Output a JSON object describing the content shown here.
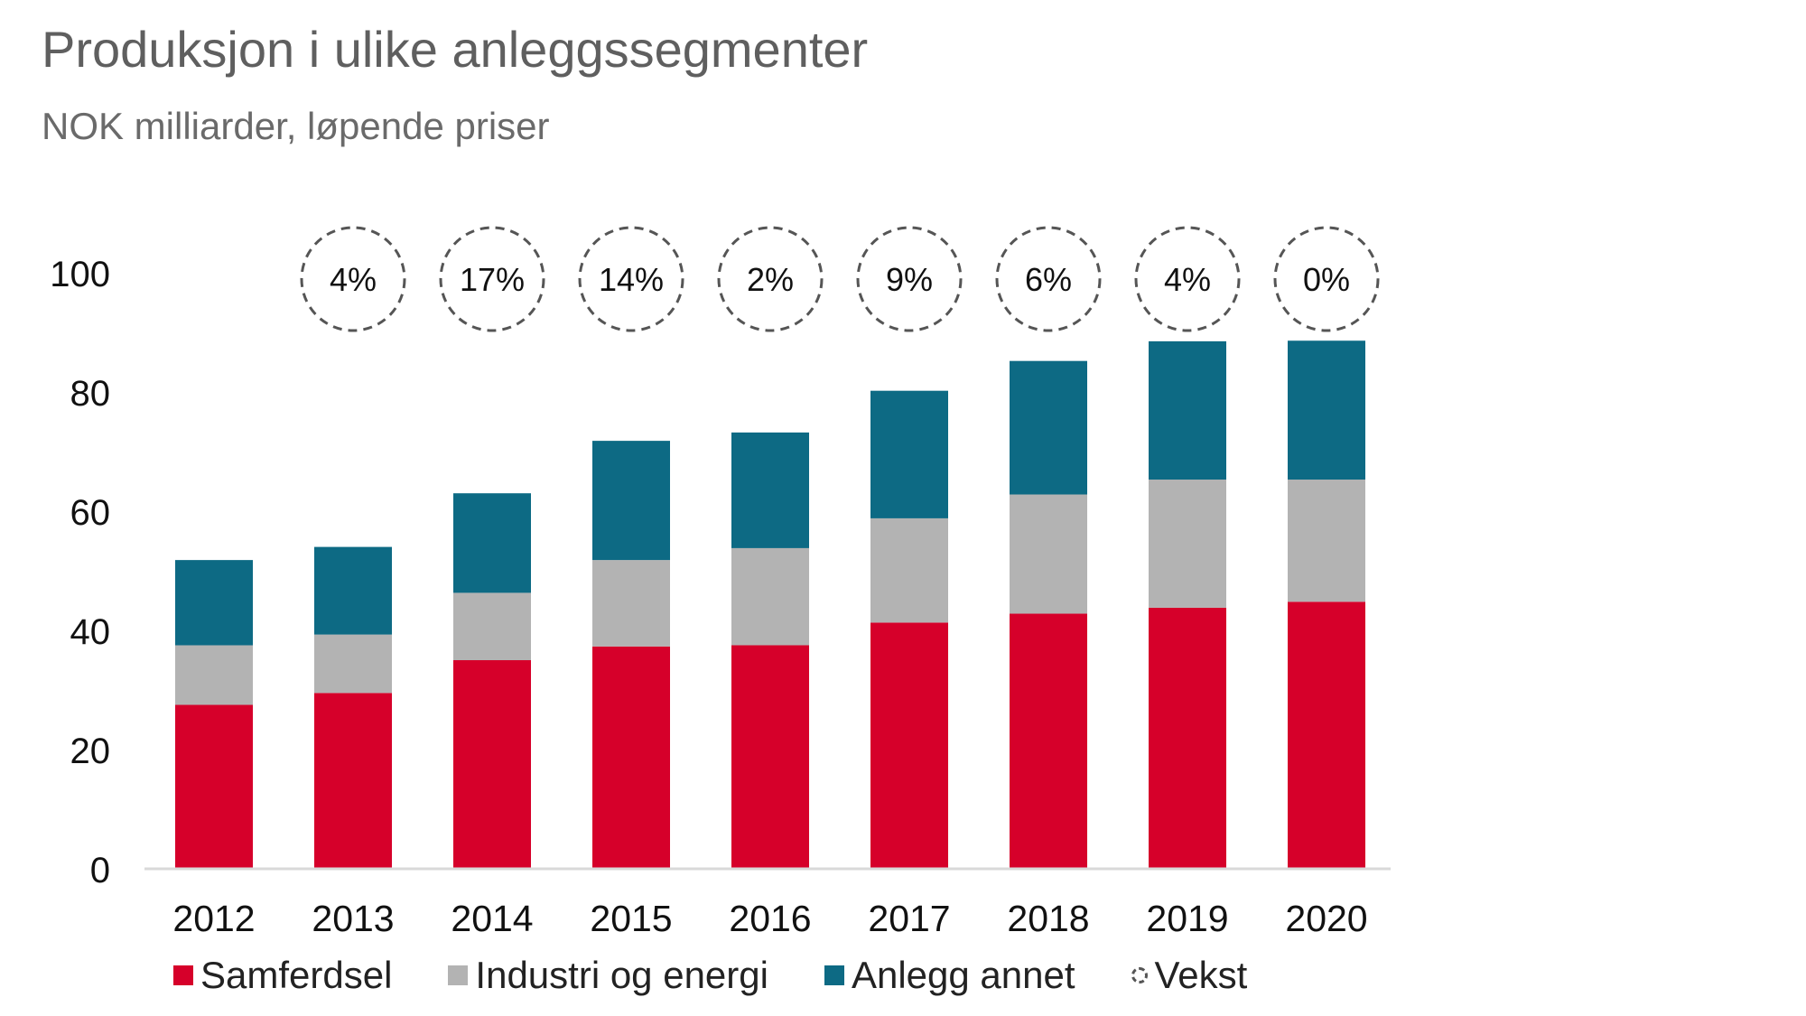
{
  "chart_data": {
    "type": "bar",
    "stacked": true,
    "title": "Produksjon i ulike anleggssegmenter",
    "subtitle": "NOK milliarder, løpende priser",
    "categories": [
      "2012",
      "2013",
      "2014",
      "2015",
      "2016",
      "2017",
      "2018",
      "2019",
      "2020"
    ],
    "series": [
      {
        "name": "Samferdsel",
        "color": "#d6002a",
        "values": [
          27.5,
          29.5,
          35,
          37.3,
          37.5,
          41.3,
          42.8,
          43.8,
          44.8
        ]
      },
      {
        "name": "Industri og energi",
        "color": "#b3b3b3",
        "values": [
          10,
          9.8,
          11.3,
          14.5,
          16.3,
          17.5,
          20,
          21.5,
          20.5
        ]
      },
      {
        "name": "Anlegg annet",
        "color": "#0d6a84",
        "values": [
          14.3,
          14.7,
          16.7,
          20,
          19.4,
          21.4,
          22.4,
          23.2,
          23.3
        ]
      }
    ],
    "growth": {
      "name": "Vekst",
      "labels": [
        "",
        "4%",
        "17%",
        "14%",
        "2%",
        "9%",
        "6%",
        "4%",
        "0%"
      ]
    },
    "y_ticks": [
      "0",
      "20",
      "40",
      "60",
      "80",
      "100"
    ],
    "ylim": [
      0,
      100
    ],
    "xlabel": "",
    "ylabel": "",
    "grid": false,
    "legend_position": "bottom"
  }
}
